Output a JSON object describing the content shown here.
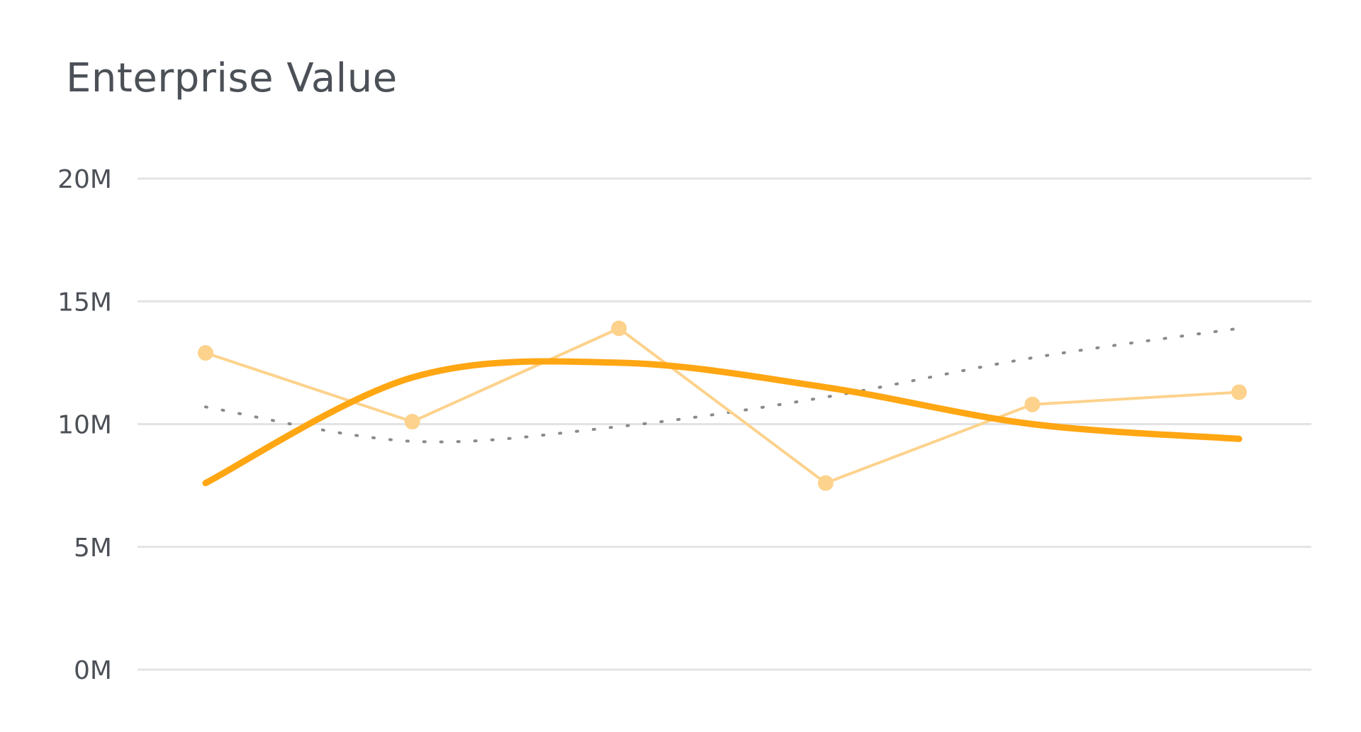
{
  "card": {
    "title": "Enterprise Value"
  },
  "chart_data": {
    "type": "line",
    "title": "Enterprise Value",
    "xlabel": "",
    "ylabel": "",
    "ylim": [
      0,
      20
    ],
    "y_ticks": [
      "0M",
      "5M",
      "10M",
      "15M",
      "20M"
    ],
    "x_count": 6,
    "series": [
      {
        "values": [
          12.9,
          10.1,
          13.9,
          7.6,
          10.8,
          11.3
        ],
        "color": "#fdd28c",
        "style": "line-with-markers"
      },
      {
        "values": [
          7.6,
          11.9,
          12.5,
          11.5,
          10.0,
          9.4
        ],
        "color": "#ffa613",
        "style": "smooth-thick"
      },
      {
        "values": [
          10.7,
          9.3,
          9.9,
          11.1,
          12.7,
          13.9
        ],
        "color": "#8a8a8a",
        "style": "dotted-trend"
      }
    ],
    "grid": true,
    "legend": "none"
  }
}
